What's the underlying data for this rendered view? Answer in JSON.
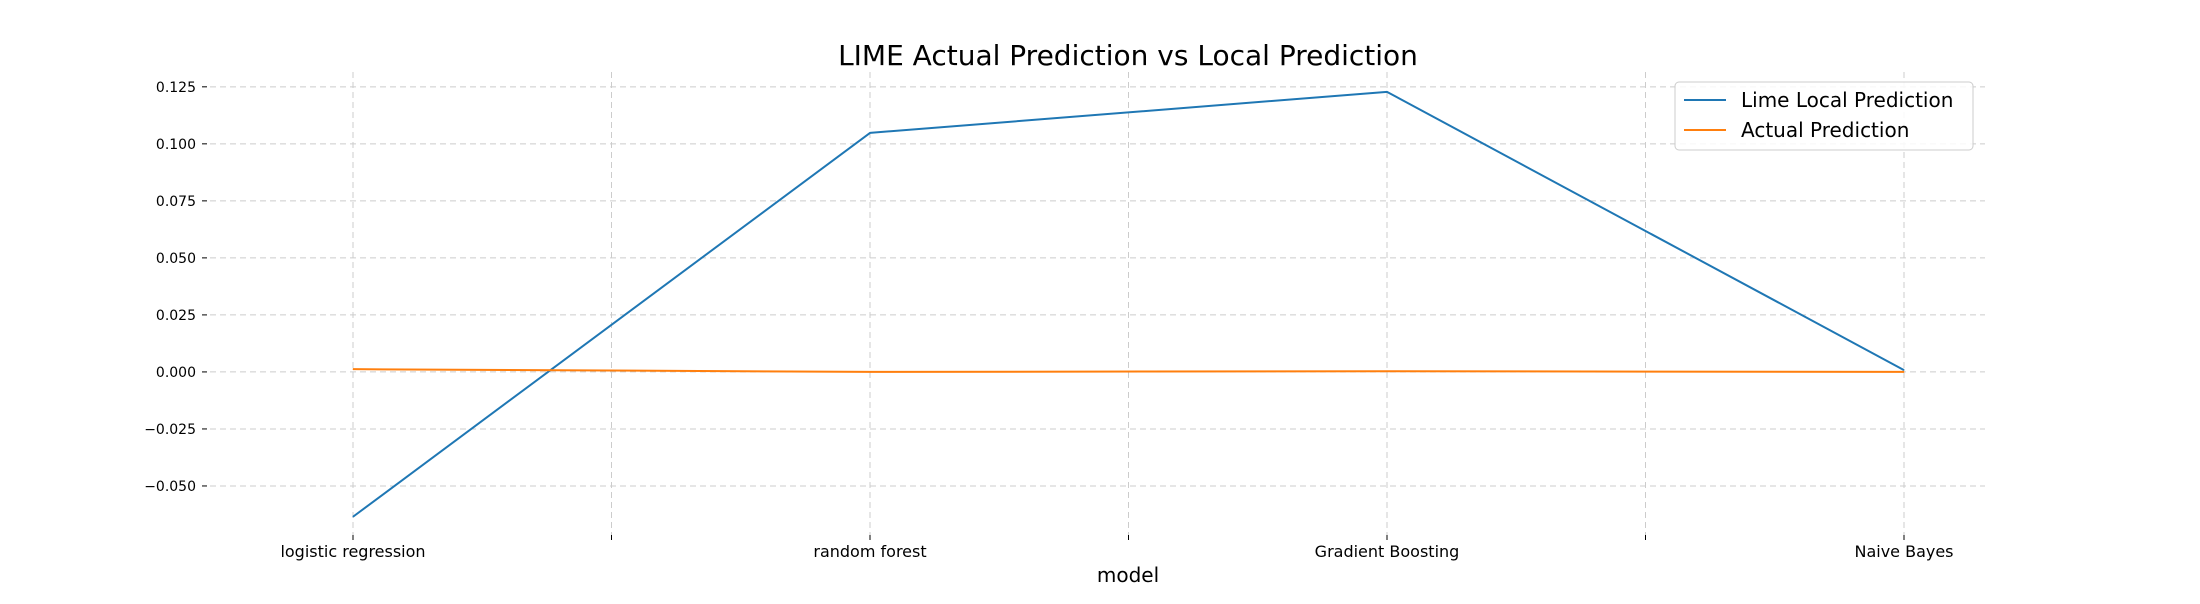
{
  "chart_data": {
    "type": "line",
    "title": "LIME Actual Prediction vs Local Prediction",
    "xlabel": "model",
    "ylabel": "",
    "categories": [
      "logistic regression",
      "random forest",
      "Gradient Boosting",
      "Naive Bayes"
    ],
    "ylim": [
      -0.0715,
      0.1315
    ],
    "yticks": [
      -0.05,
      -0.025,
      0.0,
      0.025,
      0.05,
      0.075,
      0.1,
      0.125
    ],
    "ytick_labels": [
      "−0.050",
      "−0.025",
      "0.000",
      "0.025",
      "0.050",
      "0.075",
      "0.100",
      "0.125"
    ],
    "grid": true,
    "legend_position": "top-right",
    "series": [
      {
        "name": "Lime Local Prediction",
        "color": "#1f77b4",
        "values": [
          -0.0635,
          0.1048,
          0.1228,
          0.0008
        ]
      },
      {
        "name": "Actual Prediction",
        "color": "#ff7f0e",
        "values": [
          0.0012,
          0.0,
          0.0003,
          0.0
        ]
      }
    ]
  }
}
